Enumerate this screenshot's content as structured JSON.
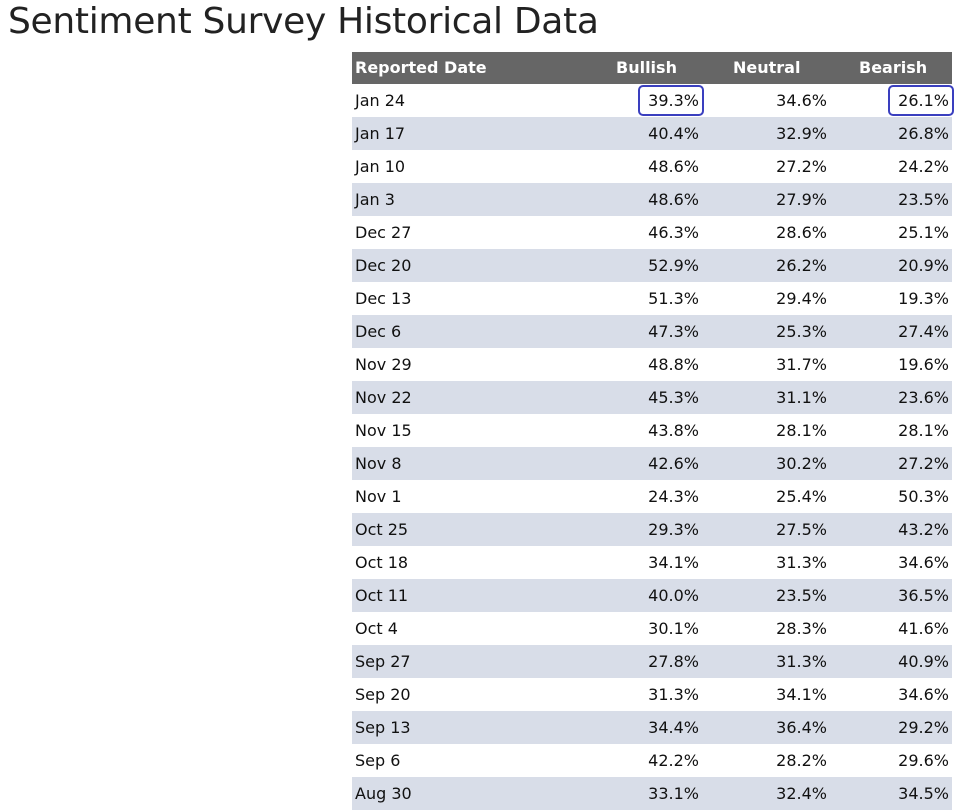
{
  "title": "Sentiment Survey Historical Data",
  "table": {
    "headers": {
      "date": "Reported Date",
      "bullish": "Bullish",
      "neutral": "Neutral",
      "bearish": "Bearish"
    },
    "rows": [
      {
        "date": "Jan 24",
        "bullish": "39.3%",
        "neutral": "34.6%",
        "bearish": "26.1%"
      },
      {
        "date": "Jan 17",
        "bullish": "40.4%",
        "neutral": "32.9%",
        "bearish": "26.8%"
      },
      {
        "date": "Jan 10",
        "bullish": "48.6%",
        "neutral": "27.2%",
        "bearish": "24.2%"
      },
      {
        "date": "Jan 3",
        "bullish": "48.6%",
        "neutral": "27.9%",
        "bearish": "23.5%"
      },
      {
        "date": "Dec 27",
        "bullish": "46.3%",
        "neutral": "28.6%",
        "bearish": "25.1%"
      },
      {
        "date": "Dec 20",
        "bullish": "52.9%",
        "neutral": "26.2%",
        "bearish": "20.9%"
      },
      {
        "date": "Dec 13",
        "bullish": "51.3%",
        "neutral": "29.4%",
        "bearish": "19.3%"
      },
      {
        "date": "Dec 6",
        "bullish": "47.3%",
        "neutral": "25.3%",
        "bearish": "27.4%"
      },
      {
        "date": "Nov 29",
        "bullish": "48.8%",
        "neutral": "31.7%",
        "bearish": "19.6%"
      },
      {
        "date": "Nov 22",
        "bullish": "45.3%",
        "neutral": "31.1%",
        "bearish": "23.6%"
      },
      {
        "date": "Nov 15",
        "bullish": "43.8%",
        "neutral": "28.1%",
        "bearish": "28.1%"
      },
      {
        "date": "Nov 8",
        "bullish": "42.6%",
        "neutral": "30.2%",
        "bearish": "27.2%"
      },
      {
        "date": "Nov 1",
        "bullish": "24.3%",
        "neutral": "25.4%",
        "bearish": "50.3%"
      },
      {
        "date": "Oct 25",
        "bullish": "29.3%",
        "neutral": "27.5%",
        "bearish": "43.2%"
      },
      {
        "date": "Oct 18",
        "bullish": "34.1%",
        "neutral": "31.3%",
        "bearish": "34.6%"
      },
      {
        "date": "Oct 11",
        "bullish": "40.0%",
        "neutral": "23.5%",
        "bearish": "36.5%"
      },
      {
        "date": "Oct 4",
        "bullish": "30.1%",
        "neutral": "28.3%",
        "bearish": "41.6%"
      },
      {
        "date": "Sep 27",
        "bullish": "27.8%",
        "neutral": "31.3%",
        "bearish": "40.9%"
      },
      {
        "date": "Sep 20",
        "bullish": "31.3%",
        "neutral": "34.1%",
        "bearish": "34.6%"
      },
      {
        "date": "Sep 13",
        "bullish": "34.4%",
        "neutral": "36.4%",
        "bearish": "29.2%"
      },
      {
        "date": "Sep 6",
        "bullish": "42.2%",
        "neutral": "28.2%",
        "bearish": "29.6%"
      },
      {
        "date": "Aug 30",
        "bullish": "33.1%",
        "neutral": "32.4%",
        "bearish": "34.5%"
      }
    ]
  },
  "colors": {
    "header_bg": "#666666",
    "alt_row_bg": "#d8dde8",
    "highlight_border": "#3a3fbf"
  }
}
